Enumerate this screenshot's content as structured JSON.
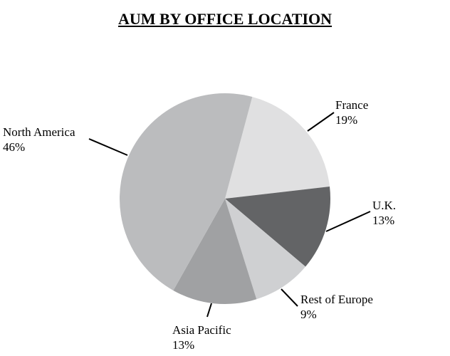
{
  "chart_data": {
    "type": "pie",
    "title": "AUM BY OFFICE LOCATION",
    "start_slice": "France",
    "direction": "clockwise",
    "slices": [
      {
        "label": "France",
        "value": 19,
        "value_label": "19%",
        "color": "#e0e0e1"
      },
      {
        "label": "U.K.",
        "value": 13,
        "value_label": "13%",
        "color": "#636466"
      },
      {
        "label": "Rest of Europe",
        "value": 9,
        "value_label": "9%",
        "color": "#cfd0d2"
      },
      {
        "label": "Asia Pacific",
        "value": 13,
        "value_label": "13%",
        "color": "#a0a1a3"
      },
      {
        "label": "North America",
        "value": 46,
        "value_label": "46%",
        "color": "#bbbcbe"
      }
    ],
    "legend": "none",
    "labels": "outside with leader lines"
  }
}
